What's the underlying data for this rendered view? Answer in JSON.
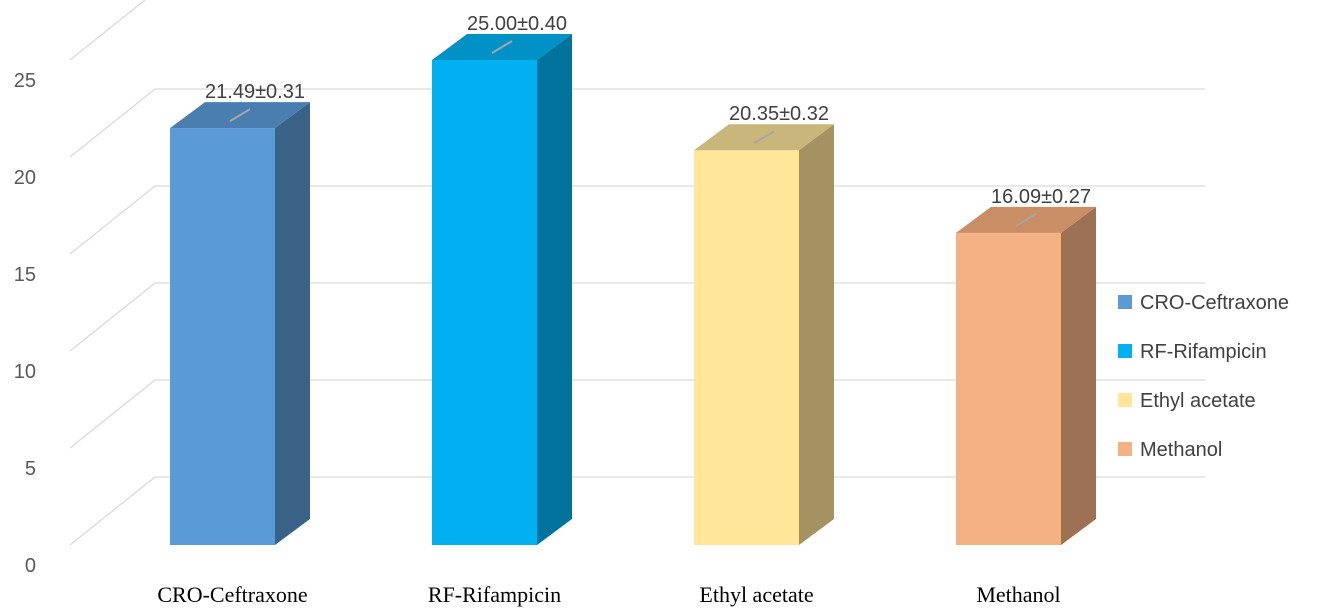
{
  "chart_data": {
    "type": "bar",
    "style": "3d-column",
    "categories": [
      "CRO-Ceftraxone",
      "RF-Rifampicin",
      "Ethyl acetate",
      "Methanol"
    ],
    "values": [
      21.49,
      25.0,
      20.35,
      16.09
    ],
    "data_labels": [
      "21.49±0.31",
      "25.00±0.40",
      "20.35±0.32",
      "16.09±0.27"
    ],
    "yticks": [
      "0",
      "5",
      "10",
      "15",
      "20",
      "25"
    ],
    "ylim": [
      0,
      25
    ],
    "ystep": 5,
    "grid": true,
    "legend_position": "right",
    "legend": [
      "CRO-Ceftraxone",
      "RF-Rifampicin",
      "Ethyl acetate",
      "Methanol"
    ],
    "colors": [
      {
        "front": "#5B9BD5",
        "side": "#3A6286",
        "top": "#4A7DB0"
      },
      {
        "front": "#00B0F0",
        "side": "#00729C",
        "top": "#0091C6"
      },
      {
        "front": "#FFE699",
        "side": "#A39262",
        "top": "#C9B67A"
      },
      {
        "front": "#F4B183",
        "side": "#9D7254",
        "top": "#C98E66"
      }
    ]
  }
}
